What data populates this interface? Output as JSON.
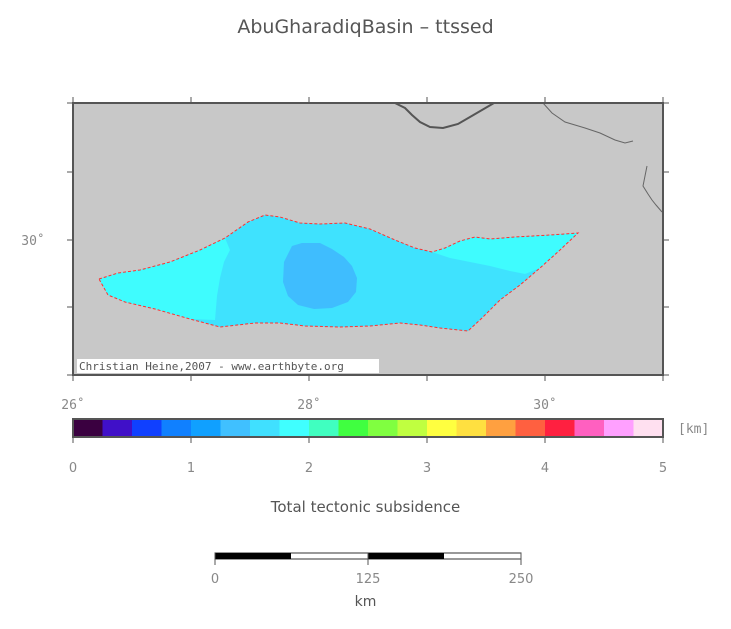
{
  "title": "AbuGharadiqBasin – ttssed",
  "map": {
    "lat_label": "30˚",
    "lon_labels": [
      "26˚",
      "28˚",
      "30˚"
    ],
    "credit": "Christian Heine,2007 - www.earthbyte.org",
    "colors": {
      "land": "#c8c8c8",
      "basin_main": "#3fe2fe",
      "basin_west": "#3ffcfe",
      "basin_deep": "#3fbdfe",
      "outline": "#ff3030",
      "coast": "#555555"
    }
  },
  "colorbar": {
    "unit": "[km]",
    "tick_labels": [
      "0",
      "1",
      "2",
      "3",
      "4",
      "5"
    ],
    "colors": [
      "#3a0040",
      "#4010c8",
      "#1040ff",
      "#1080ff",
      "#10a0ff",
      "#40c0ff",
      "#40e0ff",
      "#40ffff",
      "#40ffc0",
      "#40ff40",
      "#80ff40",
      "#c0ff40",
      "#ffff40",
      "#ffe040",
      "#ffa040",
      "#ff6040",
      "#ff2040",
      "#ff60c0",
      "#ffa0ff",
      "#ffe0f0"
    ],
    "title": "Total tectonic subsidence"
  },
  "scalebar": {
    "labels": [
      "0",
      "125",
      "250"
    ],
    "unit": "km"
  }
}
